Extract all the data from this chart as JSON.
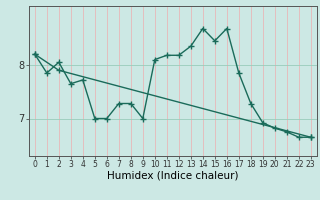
{
  "xlabel": "Humidex (Indice chaleur)",
  "background_color": "#cce8e4",
  "line_color": "#1a6b5a",
  "xgrid_color": "#e8b8b8",
  "ygrid_color": "#99ccbb",
  "line1_x": [
    0,
    1,
    2,
    3,
    4,
    5,
    6,
    7,
    8,
    9,
    10,
    11,
    12,
    13,
    14,
    15,
    16,
    17,
    18,
    19,
    20,
    21,
    22,
    23
  ],
  "line1_y": [
    8.2,
    7.85,
    8.05,
    7.65,
    7.72,
    7.0,
    7.0,
    7.28,
    7.28,
    7.0,
    8.1,
    8.18,
    8.18,
    8.35,
    8.68,
    8.45,
    8.68,
    7.85,
    7.28,
    6.92,
    6.82,
    6.75,
    6.65,
    6.65
  ],
  "line2_x": [
    0,
    2,
    23
  ],
  "line2_y": [
    8.2,
    7.9,
    6.65
  ],
  "yticks": [
    7,
    8
  ],
  "ylim": [
    6.3,
    9.1
  ],
  "xlim": [
    -0.5,
    23.5
  ],
  "xtick_fontsize": 5.5,
  "ytick_fontsize": 7,
  "xlabel_fontsize": 7.5
}
